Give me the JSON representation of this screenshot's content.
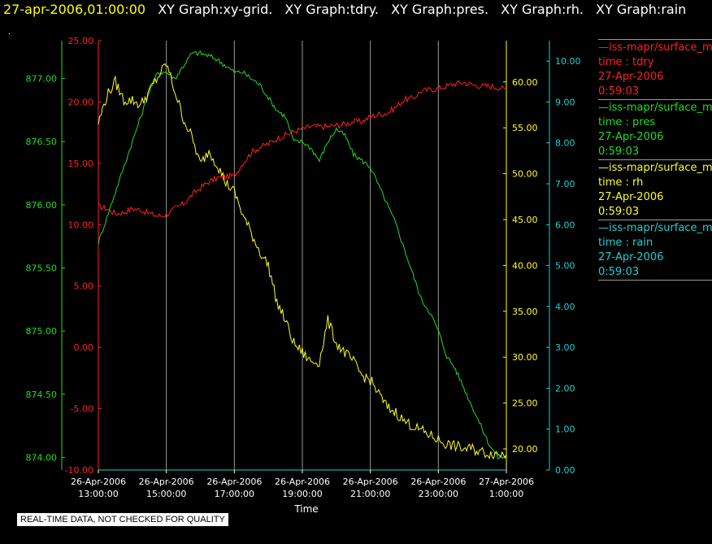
{
  "header": {
    "timestamp": "27-apr-2006,01:00:00",
    "graphs": [
      "XY Graph:xy-grid.",
      "XY Graph:tdry.",
      "XY Graph:pres.",
      "XY Graph:rh.",
      "XY Graph:rain"
    ],
    "dot": "."
  },
  "legend": [
    {
      "series": "—iss-mapr/surface_m",
      "var": "time : tdry",
      "date": "27-Apr-2006",
      "time": "0:59:03",
      "color": "#ff2020"
    },
    {
      "series": "—iss-mapr/surface_m",
      "var": "time : pres",
      "date": "27-Apr-2006",
      "time": "0:59:03",
      "color": "#20dd20"
    },
    {
      "series": "—iss-mapr/surface_m",
      "var": "time : rh",
      "date": "27-Apr-2006",
      "time": "0:59:03",
      "color": "#ffff20"
    },
    {
      "series": "—iss-mapr/surface_m",
      "var": "time : rain",
      "date": "27-Apr-2006",
      "time": "0:59:03",
      "color": "#20d0d0"
    }
  ],
  "quality_note": "REAL-TIME DATA, NOT CHECKED FOR QUALITY",
  "colors": {
    "tdry": "#ff2020",
    "pres": "#20dd20",
    "rh": "#ffff20",
    "rain": "#20d0d0",
    "grid": "#9a9a9a",
    "background": "#000000"
  },
  "chart_data": {
    "type": "line",
    "xlabel": "Time",
    "xlim_hours": [
      13,
      25
    ],
    "x_ticks": [
      {
        "hour": 13,
        "date": "26-Apr-2006",
        "time": "13:00:00"
      },
      {
        "hour": 15,
        "date": "26-Apr-2006",
        "time": "15:00:00"
      },
      {
        "hour": 17,
        "date": "26-Apr-2006",
        "time": "17:00:00"
      },
      {
        "hour": 19,
        "date": "26-Apr-2006",
        "time": "19:00:00"
      },
      {
        "hour": 21,
        "date": "26-Apr-2006",
        "time": "21:00:00"
      },
      {
        "hour": 23,
        "date": "26-Apr-2006",
        "time": "23:00:00"
      },
      {
        "hour": 25,
        "date": "27-Apr-2006",
        "time": "1:00:00"
      }
    ],
    "grid": true,
    "axes": {
      "pres": {
        "min": 873.9,
        "max": 877.3,
        "ticks": [
          "874.00",
          "874.50",
          "875.00",
          "875.50",
          "876.00",
          "876.50",
          "877.00"
        ],
        "side": "left-outer"
      },
      "tdry": {
        "min": -10,
        "max": 25,
        "ticks": [
          "-10.00",
          "-5.00",
          "0.00",
          "5.00",
          "10.00",
          "15.00",
          "20.00",
          "25.00"
        ],
        "side": "left-inner"
      },
      "rh": {
        "min": 17.7,
        "max": 64.5,
        "ticks": [
          "20.00",
          "25.00",
          "30.00",
          "35.00",
          "40.00",
          "45.00",
          "50.00",
          "55.00",
          "60.00"
        ],
        "side": "right-inner"
      },
      "rain": {
        "min": 0,
        "max": 10.5,
        "ticks": [
          "0.00",
          "1.00",
          "2.00",
          "3.00",
          "4.00",
          "5.00",
          "6.00",
          "7.00",
          "8.00",
          "9.00",
          "10.00"
        ],
        "side": "right-outer"
      }
    },
    "series": [
      {
        "name": "tdry",
        "x": [
          13.0,
          13.25,
          13.5,
          13.75,
          14.0,
          14.25,
          14.5,
          14.75,
          15.0,
          15.25,
          15.5,
          15.75,
          16.0,
          16.25,
          16.5,
          16.75,
          17.0,
          17.25,
          17.5,
          17.75,
          18.0,
          18.25,
          18.5,
          18.75,
          19.0,
          19.25,
          19.5,
          19.75,
          20.0,
          20.25,
          20.5,
          20.75,
          21.0,
          21.25,
          21.5,
          21.75,
          22.0,
          22.25,
          22.5,
          22.75,
          23.0,
          23.25,
          23.5,
          23.75,
          24.0,
          24.25,
          24.5,
          24.75,
          25.0
        ],
        "values": [
          11.5,
          11.3,
          10.9,
          11.0,
          11.3,
          11.2,
          10.9,
          10.7,
          10.8,
          11.3,
          11.7,
          12.4,
          13.0,
          13.5,
          13.8,
          13.9,
          14.0,
          15.0,
          15.9,
          16.3,
          16.6,
          17.0,
          17.3,
          17.6,
          17.8,
          18.0,
          18.0,
          18.0,
          18.1,
          18.2,
          18.4,
          18.4,
          18.8,
          19.0,
          19.1,
          19.6,
          20.2,
          20.3,
          20.9,
          21.0,
          21.1,
          21.3,
          21.5,
          21.6,
          21.4,
          21.3,
          21.3,
          21.2,
          21.0
        ]
      },
      {
        "name": "pres",
        "x": [
          13.0,
          13.25,
          13.5,
          13.75,
          14.0,
          14.25,
          14.5,
          14.75,
          15.0,
          15.25,
          15.5,
          15.75,
          16.0,
          16.25,
          16.5,
          16.75,
          17.0,
          17.25,
          17.5,
          17.75,
          18.0,
          18.25,
          18.5,
          18.75,
          19.0,
          19.25,
          19.5,
          19.75,
          20.0,
          20.25,
          20.5,
          20.75,
          21.0,
          21.25,
          21.5,
          21.75,
          22.0,
          22.25,
          22.5,
          22.75,
          23.0,
          23.25,
          23.5,
          23.75,
          24.0,
          24.25,
          24.5,
          24.75,
          25.0
        ],
        "values": [
          875.7,
          875.9,
          876.1,
          876.3,
          876.5,
          876.7,
          876.9,
          877.05,
          877.05,
          877.0,
          877.1,
          877.2,
          877.2,
          877.18,
          877.15,
          877.1,
          877.05,
          877.05,
          877.0,
          876.95,
          876.85,
          876.75,
          876.7,
          876.5,
          876.5,
          876.45,
          876.35,
          876.5,
          876.6,
          876.55,
          876.4,
          876.35,
          876.3,
          876.15,
          876.0,
          875.85,
          875.65,
          875.45,
          875.25,
          875.15,
          875.0,
          874.8,
          874.7,
          874.55,
          874.4,
          874.25,
          874.1,
          874.0,
          874.0
        ]
      },
      {
        "name": "rh",
        "x": [
          13.0,
          13.25,
          13.5,
          13.75,
          14.0,
          14.25,
          14.5,
          14.75,
          15.0,
          15.25,
          15.5,
          15.75,
          16.0,
          16.25,
          16.5,
          16.75,
          17.0,
          17.25,
          17.5,
          17.75,
          18.0,
          18.25,
          18.5,
          18.75,
          19.0,
          19.25,
          19.5,
          19.75,
          20.0,
          20.25,
          20.5,
          20.75,
          21.0,
          21.25,
          21.5,
          21.75,
          22.0,
          22.25,
          22.5,
          22.75,
          23.0,
          23.25,
          23.5,
          23.75,
          24.0,
          24.25,
          24.5,
          24.75,
          25.0
        ],
        "values": [
          55.5,
          58.5,
          60.0,
          58.0,
          58.0,
          57.5,
          59.0,
          60.5,
          62.0,
          59.0,
          56.0,
          54.0,
          51.0,
          52.5,
          51.0,
          49.0,
          48.0,
          45.5,
          43.5,
          41.5,
          40.0,
          36.0,
          34.0,
          31.5,
          30.5,
          29.5,
          29.5,
          34.0,
          31.5,
          30.5,
          29.5,
          28.0,
          27.5,
          26.0,
          24.5,
          24.0,
          23.0,
          22.5,
          22.0,
          21.5,
          21.0,
          20.5,
          20.3,
          20.0,
          20.0,
          19.7,
          19.5,
          19.5,
          19.4
        ]
      },
      {
        "name": "rain",
        "x": [
          13.0,
          25.0
        ],
        "values": [
          0.0,
          0.0
        ]
      }
    ]
  }
}
